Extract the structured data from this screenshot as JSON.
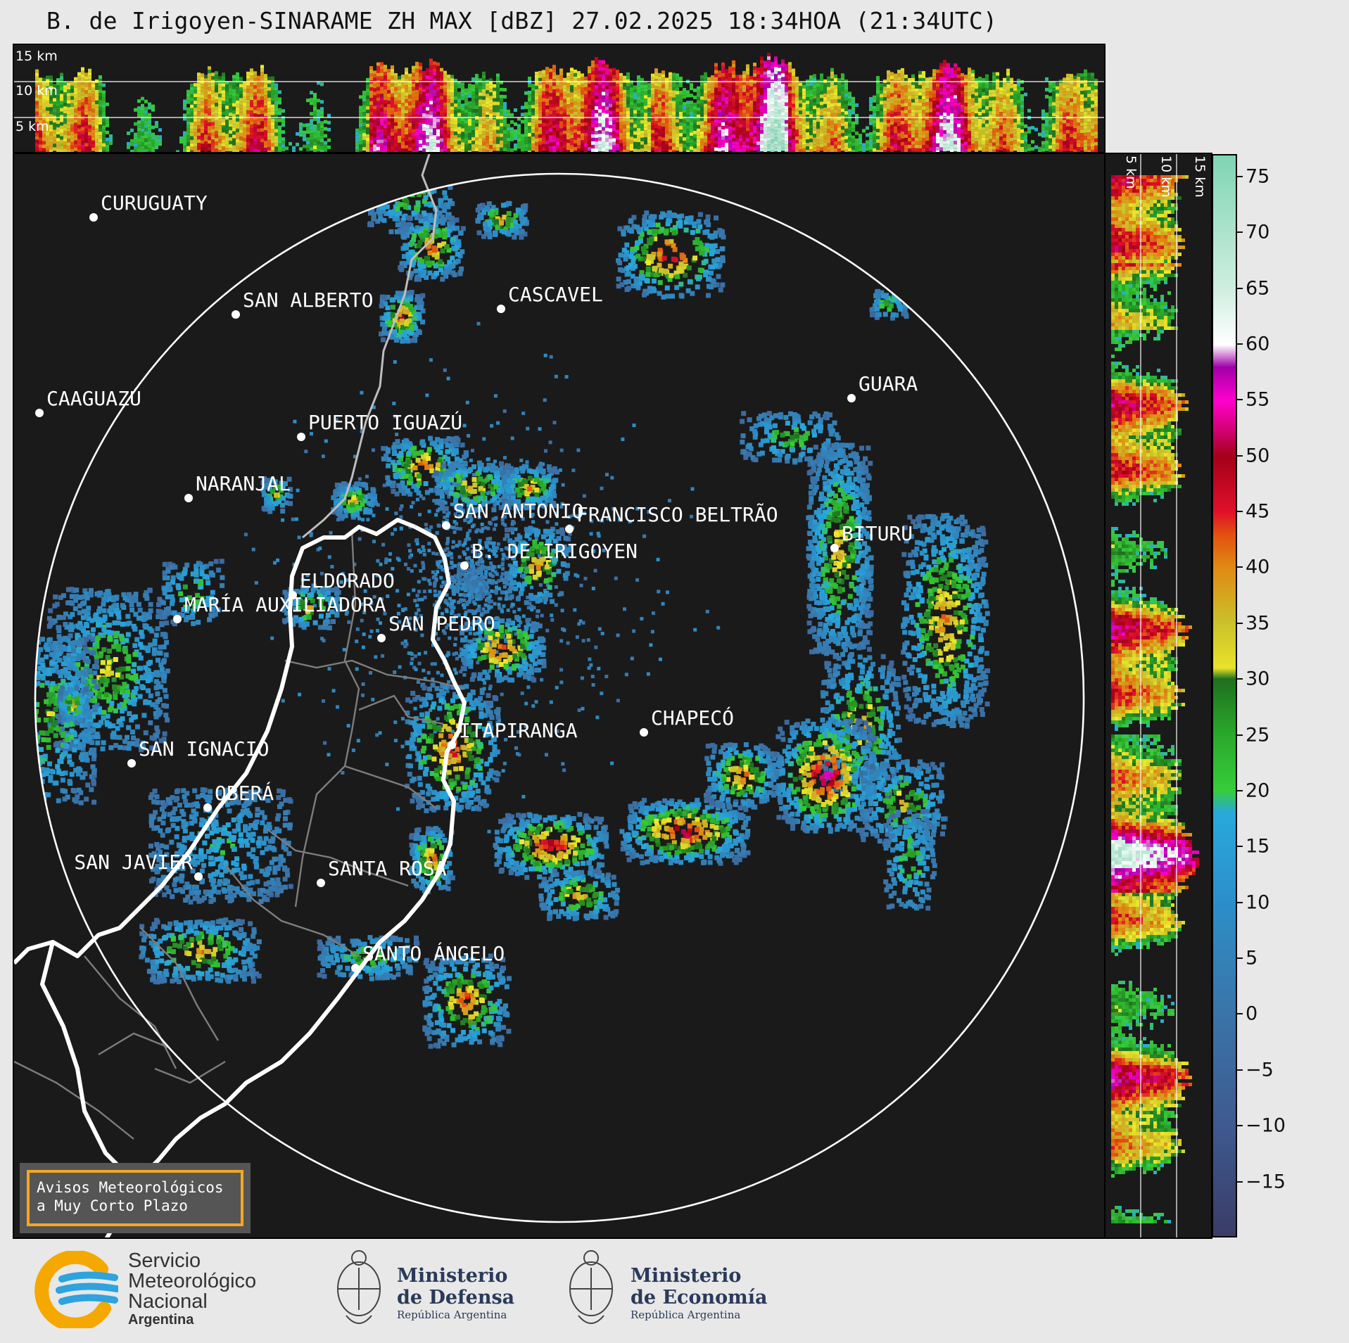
{
  "title": "B. de Irigoyen-SINARAME ZH MAX [dBZ] 27.02.2025 18:34HOA (21:34UTC)",
  "height_labels": {
    "km15": "15 km",
    "km10": "10 km",
    "km5": "5 km"
  },
  "cities": [
    {
      "name": "CURUGUATY"
    },
    {
      "name": "SAN ALBERTO"
    },
    {
      "name": "CASCAVEL"
    },
    {
      "name": "CAAGUAZÚ"
    },
    {
      "name": "GUARA"
    },
    {
      "name": "PUERTO IGUAZÚ"
    },
    {
      "name": "NARANJAL"
    },
    {
      "name": "SAN ANTONIO"
    },
    {
      "name": "FRANCISCO BELTRÃO"
    },
    {
      "name": "BITURU"
    },
    {
      "name": "B. DE IRIGOYEN"
    },
    {
      "name": "ELDORADO"
    },
    {
      "name": "MARÍA AUXILIADORA"
    },
    {
      "name": "SAN PEDRO"
    },
    {
      "name": "CHAPECÓ"
    },
    {
      "name": "ITAPIRANGA"
    },
    {
      "name": "SAN IGNACIO"
    },
    {
      "name": "OBERÁ"
    },
    {
      "name": "SAN JAVIER"
    },
    {
      "name": "SANTA ROSA"
    },
    {
      "name": "SANTO ÁNGELO"
    }
  ],
  "colorbar": {
    "ticks": [
      "75",
      "70",
      "65",
      "60",
      "55",
      "50",
      "45",
      "40",
      "35",
      "30",
      "25",
      "20",
      "15",
      "10",
      "5",
      "0",
      "−5",
      "−10",
      "−15"
    ],
    "range": [
      -20,
      77
    ]
  },
  "avisos": {
    "line1": "Avisos Meteorológicos",
    "line2": "a Muy Corto Plazo"
  },
  "logos": {
    "smn": {
      "l1": "Servicio",
      "l2": "Meteorológico",
      "l3": "Nacional",
      "l4": "Argentina"
    },
    "defensa": {
      "l1": "Ministerio",
      "l2": "de Defensa",
      "l3": "República Argentina"
    },
    "economia": {
      "l1": "Ministerio",
      "l2": "de Economía",
      "l3": "República Argentina"
    }
  }
}
